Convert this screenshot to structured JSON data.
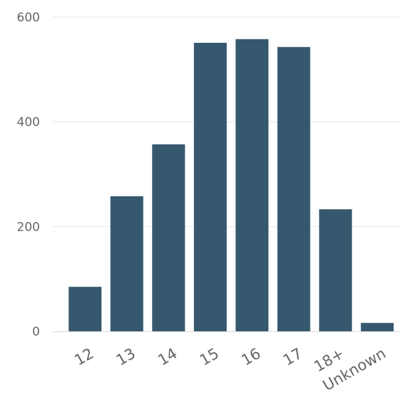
{
  "chart_data": {
    "type": "bar",
    "title": "",
    "xlabel": "",
    "ylabel": "",
    "categories": [
      "12",
      "13",
      "14",
      "15",
      "16",
      "17",
      "18+",
      "Unknown"
    ],
    "values": [
      85,
      258,
      357,
      551,
      558,
      543,
      233,
      16
    ],
    "ylim": [
      0,
      600
    ],
    "yticks": [
      0,
      200,
      400,
      600
    ],
    "grid": true,
    "legend": "none",
    "bar_color": "#36586f"
  }
}
